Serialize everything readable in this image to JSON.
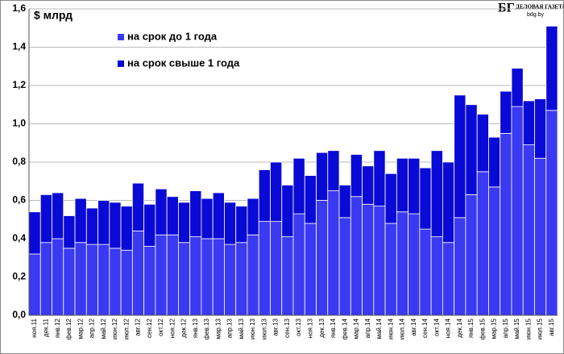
{
  "chart_data": {
    "type": "stacked_bar",
    "y_label": "$ млрд",
    "logo": {
      "mark": "БГ",
      "name": "ДЕЛОВАЯ ГАЗЕТА",
      "site": "bdg.by"
    },
    "categories": [
      "ноя.11",
      "дек.11",
      "янв.12",
      "фев.12",
      "мар.12",
      "апр.12",
      "май.12",
      "июн.12",
      "июл.12",
      "авг.12",
      "сен.12",
      "окт.12",
      "ноя.12",
      "дек.12",
      "янв.13",
      "фев.13",
      "мар.13",
      "апр.13",
      "май.13",
      "июн.13",
      "июл.13",
      "авг.13",
      "сен.13",
      "окт.13",
      "ноя.13",
      "дек.13",
      "янв.14",
      "фев.14",
      "мар.14",
      "апр.14",
      "май.14",
      "июн.14",
      "июл.14",
      "авг.14",
      "сен.14",
      "окт.14",
      "ноя.14",
      "дек.14",
      "янв.15",
      "фев.15",
      "мар.15",
      "апр.15",
      "май.15",
      "июн.15",
      "июл.15",
      "авг.15"
    ],
    "series": [
      {
        "name": "на срок до 1 года",
        "color": "#3a3af2",
        "values": [
          0.32,
          0.38,
          0.4,
          0.35,
          0.38,
          0.37,
          0.37,
          0.35,
          0.34,
          0.44,
          0.36,
          0.42,
          0.42,
          0.38,
          0.41,
          0.4,
          0.4,
          0.37,
          0.38,
          0.42,
          0.49,
          0.49,
          0.41,
          0.53,
          0.48,
          0.6,
          0.65,
          0.51,
          0.62,
          0.58,
          0.57,
          0.48,
          0.54,
          0.53,
          0.45,
          0.41,
          0.38,
          0.51,
          0.63,
          0.75,
          0.67,
          0.95,
          1.09,
          0.89,
          0.82,
          1.07
        ]
      },
      {
        "name": "на срок свыше  1 года",
        "color": "#0a0ad6",
        "values": [
          0.22,
          0.25,
          0.24,
          0.17,
          0.23,
          0.19,
          0.23,
          0.24,
          0.23,
          0.25,
          0.22,
          0.24,
          0.2,
          0.21,
          0.24,
          0.21,
          0.24,
          0.22,
          0.19,
          0.19,
          0.27,
          0.31,
          0.27,
          0.29,
          0.25,
          0.25,
          0.21,
          0.17,
          0.22,
          0.2,
          0.29,
          0.26,
          0.28,
          0.29,
          0.32,
          0.45,
          0.42,
          0.64,
          0.47,
          0.3,
          0.26,
          0.22,
          0.2,
          0.23,
          0.31,
          0.44
        ]
      }
    ],
    "ylim": [
      0,
      1.6
    ],
    "yticks": [
      {
        "value": 0,
        "label": "0,0"
      },
      {
        "value": 0.2,
        "label": "0,2"
      },
      {
        "value": 0.4,
        "label": "0,4"
      },
      {
        "value": 0.6,
        "label": "0,6"
      },
      {
        "value": 0.8,
        "label": "0,8"
      },
      {
        "value": 1.0,
        "label": "1,0"
      },
      {
        "value": 1.2,
        "label": "1,2"
      },
      {
        "value": 1.4,
        "label": "1,4"
      },
      {
        "value": 1.6,
        "label": "1,6"
      }
    ],
    "grid": true
  }
}
